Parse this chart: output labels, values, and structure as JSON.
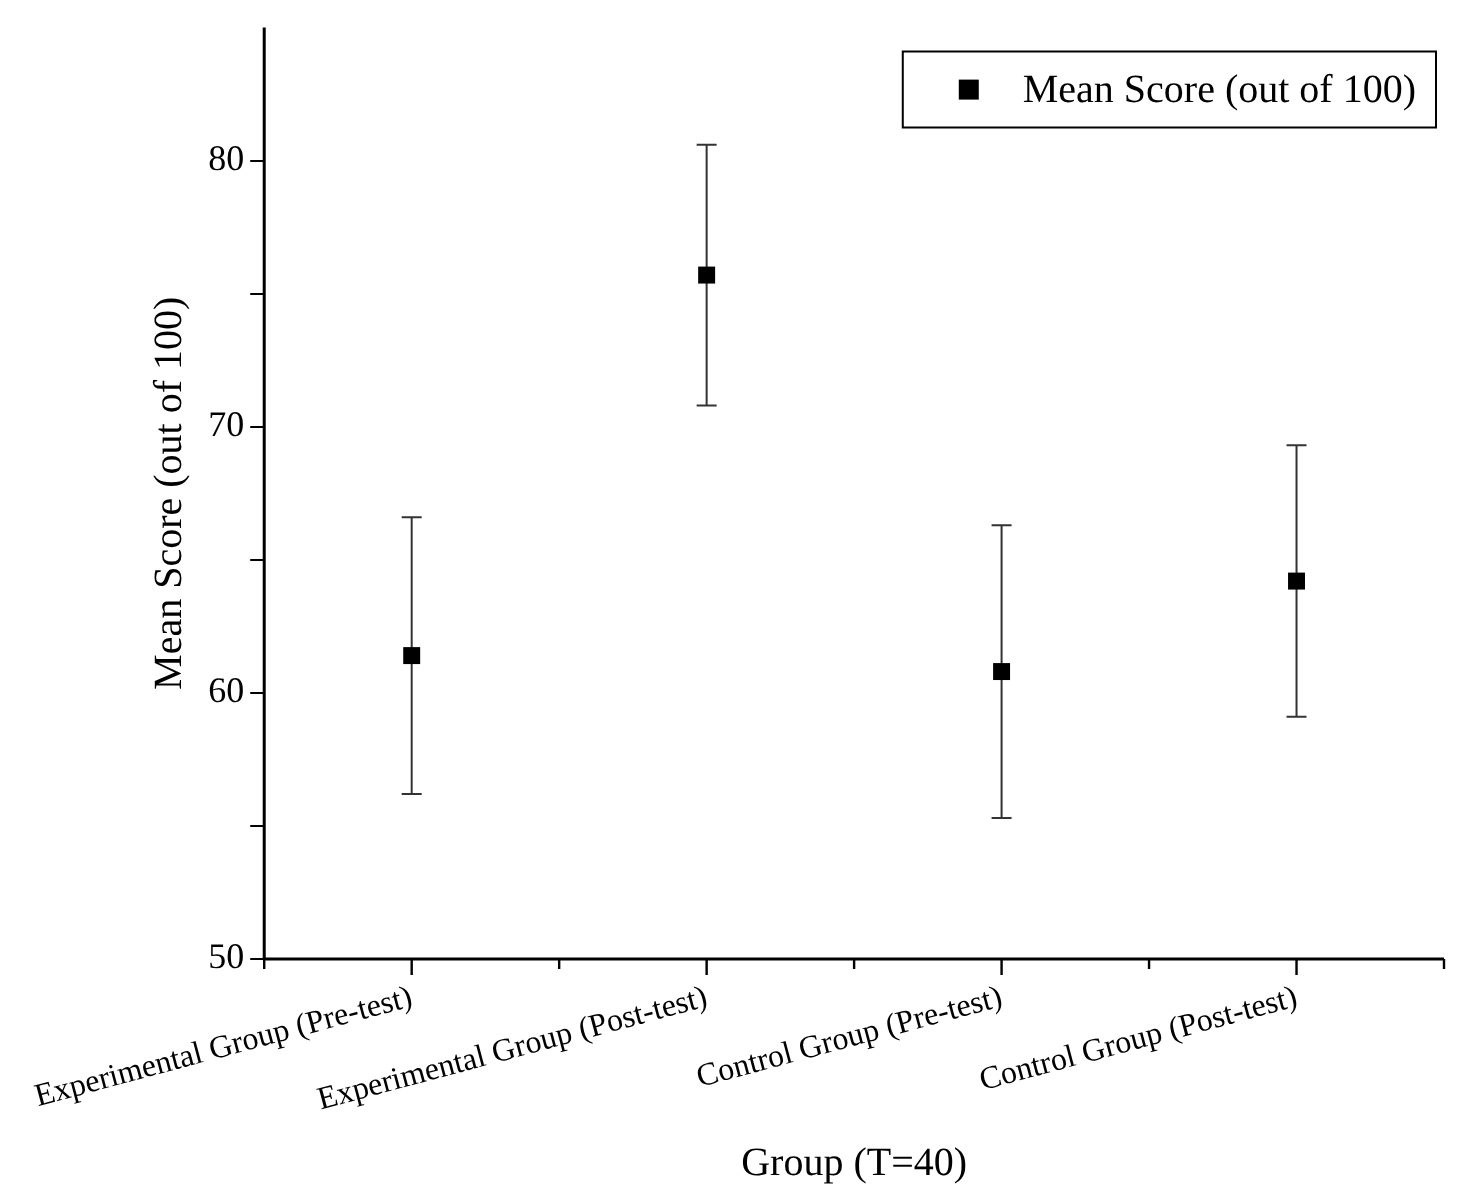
{
  "chart_data": {
    "type": "scatter",
    "xlabel": "Group (T=40)",
    "ylabel": "Mean Score (out of 100)",
    "categories": [
      "Experimental Group (Pre-test)",
      "Experimental Group (Post-test)",
      "Control Group (Pre-test)",
      "Control Group (Post-test)"
    ],
    "series": [
      {
        "name": "Mean Score (out of 100)",
        "color": "#000000",
        "values": [
          61.4,
          75.7,
          60.8,
          64.2
        ],
        "errors": [
          5.2,
          4.9,
          5.5,
          5.1
        ]
      }
    ],
    "ylim": [
      50,
      85
    ],
    "yticks": [
      50,
      {
        "value": 55,
        "label": null
      },
      60,
      {
        "value": 65,
        "label": null
      },
      70,
      {
        "value": 75,
        "label": null
      },
      80
    ],
    "marker": "square",
    "legend": "top right",
    "grid": false
  }
}
